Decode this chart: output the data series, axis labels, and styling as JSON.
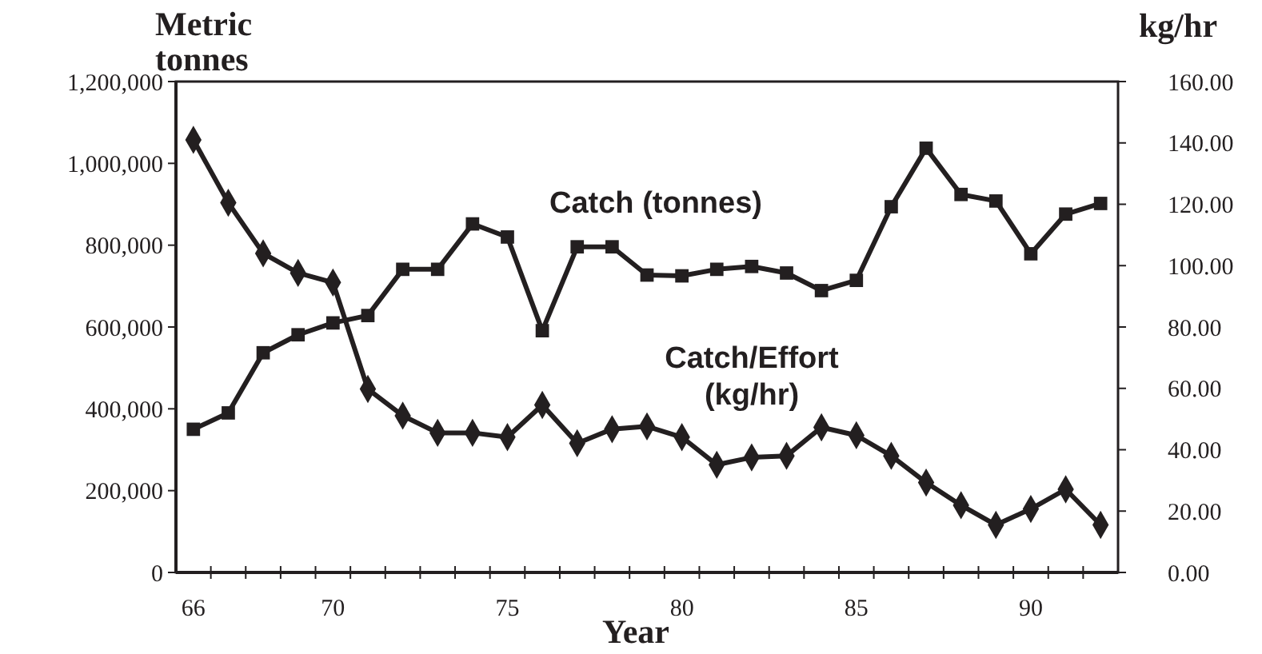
{
  "chart_data": {
    "type": "line",
    "xlabel": "Year",
    "ylabel": "Metric tonnes",
    "y2label": "kg/hr",
    "x": [
      66,
      67,
      68,
      69,
      70,
      71,
      72,
      73,
      74,
      75,
      76,
      77,
      78,
      79,
      80,
      81,
      82,
      83,
      84,
      85,
      86,
      87,
      88,
      89,
      90,
      91,
      92
    ],
    "xlim": [
      65.5,
      92.5
    ],
    "xticks": [
      66,
      70,
      75,
      80,
      85,
      90
    ],
    "ylim": [
      0,
      1200000
    ],
    "yticks": [
      {
        "value": 0,
        "label": "0"
      },
      {
        "value": 200000,
        "label": "200,000"
      },
      {
        "value": 400000,
        "label": "400,000"
      },
      {
        "value": 600000,
        "label": "600,000"
      },
      {
        "value": 800000,
        "label": "800,000"
      },
      {
        "value": 1000000,
        "label": "1,000,000"
      },
      {
        "value": 1200000,
        "label": "1,200,000"
      }
    ],
    "y2lim": [
      0,
      160
    ],
    "y2ticks": [
      {
        "value": 0,
        "label": "0.00"
      },
      {
        "value": 20,
        "label": "20.00"
      },
      {
        "value": 40,
        "label": "40.00"
      },
      {
        "value": 60,
        "label": "60.00"
      },
      {
        "value": 80,
        "label": "80.00"
      },
      {
        "value": 100,
        "label": "100.00"
      },
      {
        "value": 120,
        "label": "120.00"
      },
      {
        "value": 140,
        "label": "140.00"
      },
      {
        "value": 160,
        "label": "160.00"
      }
    ],
    "grid": false,
    "legend": false,
    "line_style": "solid",
    "series": [
      {
        "name": "Catch (tonnes)",
        "color": "#231f20",
        "marker": "square",
        "values": [
          350000,
          390000,
          537000,
          581000,
          610000,
          628000,
          741000,
          741000,
          852000,
          820000,
          591000,
          796000,
          796000,
          727000,
          725000,
          741000,
          748000,
          732000,
          689000,
          714000,
          894000,
          1037000,
          924000,
          908000,
          779000,
          876000,
          902000
        ]
      },
      {
        "name": "Catch/Effort (kg/hr)",
        "color": "#231f20",
        "marker": "diamond",
        "axis": "y2",
        "values": [
          141,
          120.5,
          104,
          97.6,
          94.5,
          59.8,
          51.1,
          45.5,
          45.5,
          44.1,
          54.6,
          42.1,
          46.7,
          47.6,
          44.1,
          35.1,
          37.5,
          38,
          47.3,
          44.7,
          38,
          29.3,
          21.9,
          15.5,
          20.7,
          27.1,
          15.5
        ]
      }
    ]
  }
}
